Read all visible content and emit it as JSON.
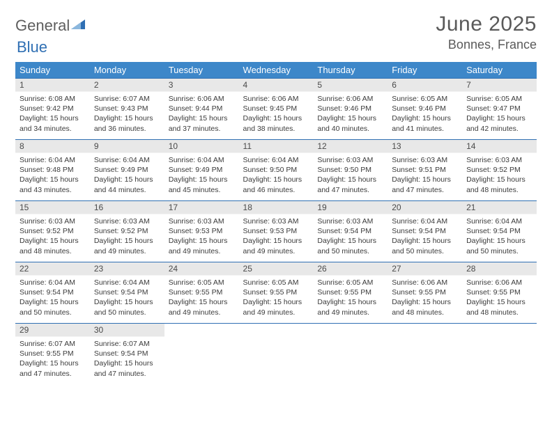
{
  "brand": {
    "part1": "General",
    "part2": "Blue"
  },
  "title": "June 2025",
  "location": "Bonnes, France",
  "colors": {
    "header_bg": "#3d87c9",
    "border": "#2f6fb3",
    "daynum_bg": "#e8e8e8",
    "text": "#3b3b3b",
    "title_text": "#5a5a5a"
  },
  "daysOfWeek": [
    "Sunday",
    "Monday",
    "Tuesday",
    "Wednesday",
    "Thursday",
    "Friday",
    "Saturday"
  ],
  "weeks": [
    [
      {
        "n": "1",
        "sr": "6:08 AM",
        "ss": "9:42 PM",
        "dl": "15 hours and 34 minutes."
      },
      {
        "n": "2",
        "sr": "6:07 AM",
        "ss": "9:43 PM",
        "dl": "15 hours and 36 minutes."
      },
      {
        "n": "3",
        "sr": "6:06 AM",
        "ss": "9:44 PM",
        "dl": "15 hours and 37 minutes."
      },
      {
        "n": "4",
        "sr": "6:06 AM",
        "ss": "9:45 PM",
        "dl": "15 hours and 38 minutes."
      },
      {
        "n": "5",
        "sr": "6:06 AM",
        "ss": "9:46 PM",
        "dl": "15 hours and 40 minutes."
      },
      {
        "n": "6",
        "sr": "6:05 AM",
        "ss": "9:46 PM",
        "dl": "15 hours and 41 minutes."
      },
      {
        "n": "7",
        "sr": "6:05 AM",
        "ss": "9:47 PM",
        "dl": "15 hours and 42 minutes."
      }
    ],
    [
      {
        "n": "8",
        "sr": "6:04 AM",
        "ss": "9:48 PM",
        "dl": "15 hours and 43 minutes."
      },
      {
        "n": "9",
        "sr": "6:04 AM",
        "ss": "9:49 PM",
        "dl": "15 hours and 44 minutes."
      },
      {
        "n": "10",
        "sr": "6:04 AM",
        "ss": "9:49 PM",
        "dl": "15 hours and 45 minutes."
      },
      {
        "n": "11",
        "sr": "6:04 AM",
        "ss": "9:50 PM",
        "dl": "15 hours and 46 minutes."
      },
      {
        "n": "12",
        "sr": "6:03 AM",
        "ss": "9:50 PM",
        "dl": "15 hours and 47 minutes."
      },
      {
        "n": "13",
        "sr": "6:03 AM",
        "ss": "9:51 PM",
        "dl": "15 hours and 47 minutes."
      },
      {
        "n": "14",
        "sr": "6:03 AM",
        "ss": "9:52 PM",
        "dl": "15 hours and 48 minutes."
      }
    ],
    [
      {
        "n": "15",
        "sr": "6:03 AM",
        "ss": "9:52 PM",
        "dl": "15 hours and 48 minutes."
      },
      {
        "n": "16",
        "sr": "6:03 AM",
        "ss": "9:52 PM",
        "dl": "15 hours and 49 minutes."
      },
      {
        "n": "17",
        "sr": "6:03 AM",
        "ss": "9:53 PM",
        "dl": "15 hours and 49 minutes."
      },
      {
        "n": "18",
        "sr": "6:03 AM",
        "ss": "9:53 PM",
        "dl": "15 hours and 49 minutes."
      },
      {
        "n": "19",
        "sr": "6:03 AM",
        "ss": "9:54 PM",
        "dl": "15 hours and 50 minutes."
      },
      {
        "n": "20",
        "sr": "6:04 AM",
        "ss": "9:54 PM",
        "dl": "15 hours and 50 minutes."
      },
      {
        "n": "21",
        "sr": "6:04 AM",
        "ss": "9:54 PM",
        "dl": "15 hours and 50 minutes."
      }
    ],
    [
      {
        "n": "22",
        "sr": "6:04 AM",
        "ss": "9:54 PM",
        "dl": "15 hours and 50 minutes."
      },
      {
        "n": "23",
        "sr": "6:04 AM",
        "ss": "9:54 PM",
        "dl": "15 hours and 50 minutes."
      },
      {
        "n": "24",
        "sr": "6:05 AM",
        "ss": "9:55 PM",
        "dl": "15 hours and 49 minutes."
      },
      {
        "n": "25",
        "sr": "6:05 AM",
        "ss": "9:55 PM",
        "dl": "15 hours and 49 minutes."
      },
      {
        "n": "26",
        "sr": "6:05 AM",
        "ss": "9:55 PM",
        "dl": "15 hours and 49 minutes."
      },
      {
        "n": "27",
        "sr": "6:06 AM",
        "ss": "9:55 PM",
        "dl": "15 hours and 48 minutes."
      },
      {
        "n": "28",
        "sr": "6:06 AM",
        "ss": "9:55 PM",
        "dl": "15 hours and 48 minutes."
      }
    ],
    [
      {
        "n": "29",
        "sr": "6:07 AM",
        "ss": "9:55 PM",
        "dl": "15 hours and 47 minutes."
      },
      {
        "n": "30",
        "sr": "6:07 AM",
        "ss": "9:54 PM",
        "dl": "15 hours and 47 minutes."
      },
      null,
      null,
      null,
      null,
      null
    ]
  ],
  "labels": {
    "sunrise": "Sunrise: ",
    "sunset": "Sunset: ",
    "daylight": "Daylight: "
  }
}
